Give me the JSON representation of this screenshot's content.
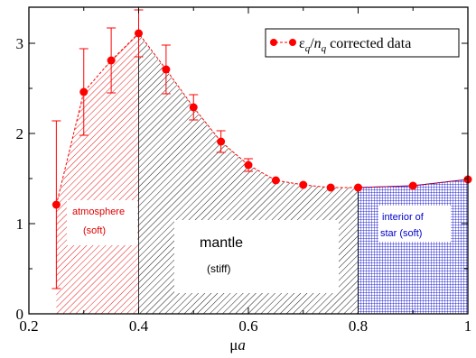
{
  "chart_data": {
    "type": "scatter",
    "xlabel_mu": "μ",
    "xlabel_a": "a",
    "xlim": [
      0.2,
      1.0
    ],
    "ylim": [
      0,
      3.4
    ],
    "x_ticks": [
      {
        "value": 0.2,
        "label": "0.2"
      },
      {
        "value": 0.4,
        "label": "0.4"
      },
      {
        "value": 0.6,
        "label": "0.6"
      },
      {
        "value": 0.8,
        "label": "0.8"
      },
      {
        "value": 1.0,
        "label": "1"
      }
    ],
    "y_ticks": [
      {
        "value": 0,
        "label": "0"
      },
      {
        "value": 1,
        "label": "1"
      },
      {
        "value": 2,
        "label": "2"
      },
      {
        "value": 3,
        "label": "3"
      }
    ],
    "grid": false,
    "legend": {
      "placement": "top-right",
      "eps": "ε",
      "sub_q1": "q",
      "slash": "/",
      "n": "n",
      "sub_q2": "q",
      "rest": " corrected data"
    },
    "series": [
      {
        "color": "#ff0000",
        "x": [
          0.25,
          0.3,
          0.35,
          0.4,
          0.45,
          0.5,
          0.55,
          0.6,
          0.65,
          0.7,
          0.75,
          0.8,
          0.9,
          1.0
        ],
        "y": [
          1.21,
          2.46,
          2.81,
          3.11,
          2.71,
          2.29,
          1.91,
          1.65,
          1.48,
          1.43,
          1.4,
          1.4,
          1.42,
          1.49
        ],
        "err": [
          0.93,
          0.48,
          0.36,
          0.26,
          0.27,
          0.14,
          0.12,
          0.07,
          0.04,
          0.03,
          0.03,
          0.03,
          0.03,
          0.03
        ]
      }
    ],
    "regions": [
      {
        "name": "atmosphere",
        "x_from": 0.25,
        "x_to": 0.4,
        "color": "#e00000",
        "line1": "atmosphere",
        "line2": "(soft)"
      },
      {
        "name": "mantle",
        "x_from": 0.4,
        "x_to": 0.8,
        "color": "#000000",
        "line1": "mantle",
        "line2": "(stiff)"
      },
      {
        "name": "interior",
        "x_from": 0.8,
        "x_to": 1.0,
        "color": "#0000cc",
        "line1": "interior of",
        "line2": "star (soft)"
      }
    ]
  }
}
